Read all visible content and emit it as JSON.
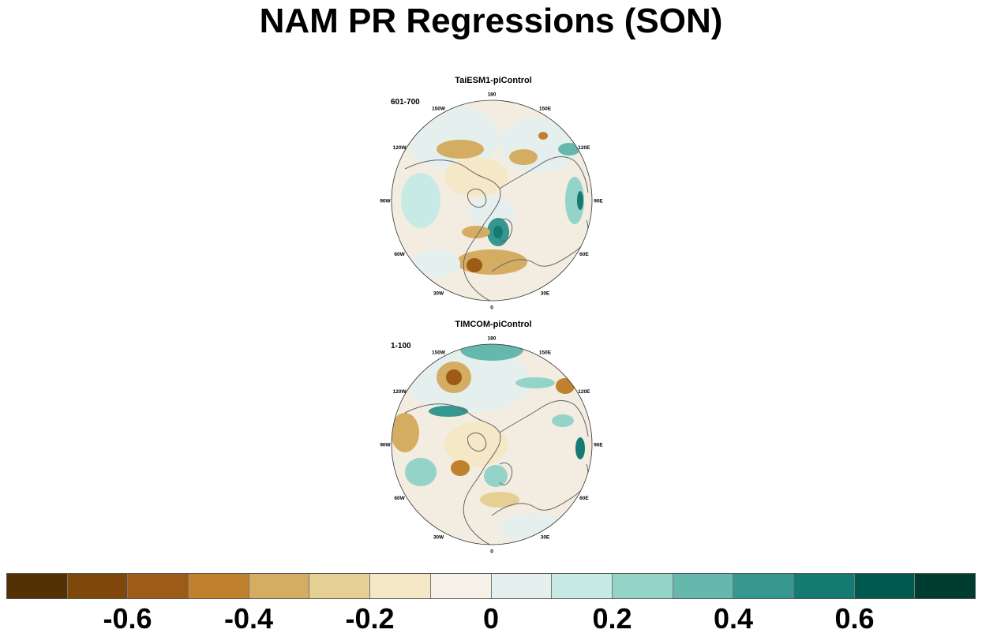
{
  "figure": {
    "title": "NAM PR Regressions (SON)"
  },
  "panels": [
    {
      "title": "TaiESM1-piControl",
      "period": "601-700"
    },
    {
      "title": "TIMCOM-piControl",
      "period": "1-100"
    }
  ],
  "map": {
    "projection": "north-polar-stereographic",
    "longitude_labels": [
      "180",
      "150E",
      "120E",
      "90E",
      "60E",
      "30E",
      "0",
      "30W",
      "60W",
      "90W",
      "120W",
      "150W"
    ]
  },
  "colorbar": {
    "colors": [
      "#543005",
      "#7f4709",
      "#9c5b17",
      "#bf812d",
      "#d4ad63",
      "#e6cf92",
      "#f4e8c6",
      "#f5f1e6",
      "#e4efee",
      "#c7eae5",
      "#94d3c8",
      "#67b8ac",
      "#35978f",
      "#157a71",
      "#01584f",
      "#003c30"
    ],
    "tick_labels": [
      "-0.6",
      "-0.4",
      "-0.2",
      "0",
      "0.2",
      "0.4",
      "0.6"
    ]
  }
}
